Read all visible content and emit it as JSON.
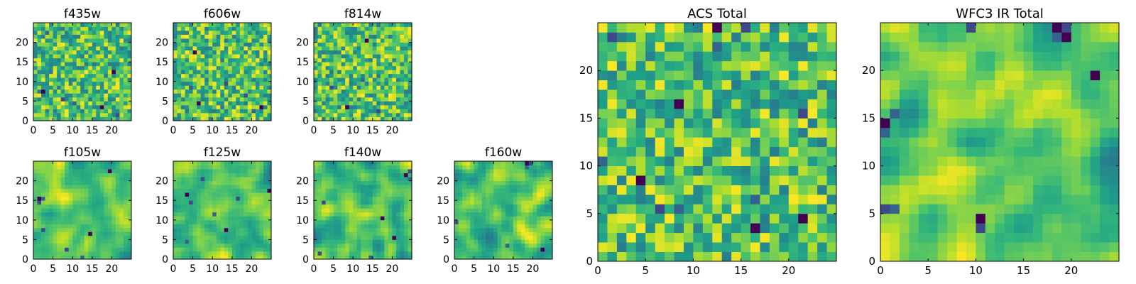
{
  "figure": {
    "background": "#ffffff",
    "colormap": "viridis",
    "colormap_stops": [
      "#440154",
      "#482878",
      "#3e4a89",
      "#31688e",
      "#26828e",
      "#1f9e89",
      "#35b779",
      "#6dcd59",
      "#b4de2c",
      "#fde725"
    ]
  },
  "chart_data": [
    {
      "type": "heatmap",
      "title": "f435w",
      "grid": false,
      "xlim": [
        0,
        25
      ],
      "ylim": [
        0,
        25
      ],
      "xticks": [
        "0",
        "5",
        "10",
        "15",
        "20"
      ],
      "yticks": [
        "0",
        "5",
        "10",
        "15",
        "20"
      ],
      "value_range": [
        0,
        1
      ],
      "pixels_per_side": 25,
      "texture": "fine",
      "seed": 11,
      "dark_cells": [
        [
          7,
          2
        ],
        [
          5,
          7
        ],
        [
          4,
          10
        ],
        [
          3,
          17
        ],
        [
          1,
          21
        ],
        [
          22,
          3
        ],
        [
          12,
          20
        ]
      ]
    },
    {
      "type": "heatmap",
      "title": "f606w",
      "grid": false,
      "xlim": [
        0,
        25
      ],
      "ylim": [
        0,
        25
      ],
      "xticks": [
        "0",
        "5",
        "10",
        "15",
        "20"
      ],
      "yticks": [
        "0",
        "5",
        "10",
        "15",
        "20"
      ],
      "value_range": [
        0,
        1
      ],
      "pixels_per_side": 25,
      "texture": "fine",
      "seed": 23,
      "dark_cells": [
        [
          17,
          5
        ],
        [
          9,
          13
        ],
        [
          8,
          4
        ],
        [
          4,
          6
        ],
        [
          6,
          18
        ],
        [
          2,
          20
        ],
        [
          3,
          22
        ]
      ]
    },
    {
      "type": "heatmap",
      "title": "f814w",
      "grid": false,
      "xlim": [
        0,
        25
      ],
      "ylim": [
        0,
        25
      ],
      "xticks": [
        "0",
        "5",
        "10",
        "15",
        "20"
      ],
      "yticks": [
        "0",
        "5",
        "10",
        "15",
        "20"
      ],
      "value_range": [
        0,
        1
      ],
      "pixels_per_side": 25,
      "texture": "fine",
      "seed": 37,
      "dark_cells": [
        [
          20,
          13
        ],
        [
          8,
          4
        ],
        [
          10,
          12
        ],
        [
          3,
          8
        ],
        [
          2,
          16
        ]
      ]
    },
    {
      "type": "heatmap",
      "title": "f105w",
      "grid": false,
      "xlim": [
        0,
        25
      ],
      "ylim": [
        0,
        25
      ],
      "xticks": [
        "0",
        "5",
        "10",
        "15",
        "20"
      ],
      "yticks": [
        "0",
        "5",
        "10",
        "15",
        "20"
      ],
      "value_range": [
        0,
        1
      ],
      "pixels_per_side": 25,
      "texture": "smooth",
      "seed": 41,
      "dark_cells": [
        [
          15,
          1
        ],
        [
          14,
          1
        ],
        [
          15,
          2
        ],
        [
          6,
          14
        ],
        [
          2,
          8
        ],
        [
          0,
          12
        ],
        [
          22,
          19
        ],
        [
          7,
          2
        ]
      ]
    },
    {
      "type": "heatmap",
      "title": "f125w",
      "grid": false,
      "xlim": [
        0,
        25
      ],
      "ylim": [
        0,
        25
      ],
      "xticks": [
        "0",
        "5",
        "10",
        "15",
        "20"
      ],
      "yticks": [
        "0",
        "5",
        "10",
        "15",
        "20"
      ],
      "value_range": [
        0,
        1
      ],
      "pixels_per_side": 25,
      "texture": "smooth",
      "seed": 53,
      "dark_cells": [
        [
          16,
          3
        ],
        [
          14,
          4
        ],
        [
          11,
          10
        ],
        [
          17,
          24
        ],
        [
          15,
          16
        ],
        [
          4,
          3
        ],
        [
          7,
          13
        ],
        [
          20,
          7
        ]
      ]
    },
    {
      "type": "heatmap",
      "title": "f140w",
      "grid": false,
      "xlim": [
        0,
        25
      ],
      "ylim": [
        0,
        25
      ],
      "xticks": [
        "0",
        "5",
        "10",
        "15",
        "20"
      ],
      "yticks": [
        "0",
        "5",
        "10",
        "15",
        "20"
      ],
      "value_range": [
        0,
        1
      ],
      "pixels_per_side": 25,
      "texture": "smooth",
      "seed": 67,
      "dark_cells": [
        [
          21,
          23
        ],
        [
          22,
          24
        ],
        [
          20,
          24
        ],
        [
          10,
          17
        ],
        [
          1,
          1
        ],
        [
          0,
          14
        ],
        [
          5,
          20
        ],
        [
          14,
          2
        ]
      ]
    },
    {
      "type": "heatmap",
      "title": "f160w",
      "grid": false,
      "xlim": [
        0,
        25
      ],
      "ylim": [
        0,
        25
      ],
      "xticks": [
        "0",
        "5",
        "10",
        "15",
        "20"
      ],
      "yticks": [
        "0",
        "5",
        "10",
        "15",
        "20"
      ],
      "value_range": [
        0,
        1
      ],
      "pixels_per_side": 25,
      "texture": "smooth",
      "seed": 79,
      "dark_cells": [
        [
          24,
          18
        ],
        [
          24,
          19
        ],
        [
          23,
          18
        ],
        [
          2,
          22
        ],
        [
          9,
          0
        ],
        [
          3,
          13
        ]
      ]
    },
    {
      "type": "heatmap",
      "title": "ACS Total",
      "grid": false,
      "xlim": [
        0,
        25
      ],
      "ylim": [
        0,
        25
      ],
      "xticks": [
        "0",
        "5",
        "10",
        "15",
        "20"
      ],
      "yticks": [
        "0",
        "5",
        "10",
        "15",
        "20"
      ],
      "value_range": [
        0,
        1
      ],
      "pixels_per_side": 25,
      "texture": "fine",
      "seed": 97,
      "dark_cells": [
        [
          24,
          12
        ],
        [
          24,
          15
        ],
        [
          22,
          12
        ],
        [
          16,
          8
        ],
        [
          15,
          21
        ],
        [
          10,
          0
        ],
        [
          8,
          4
        ],
        [
          5,
          6
        ],
        [
          5,
          8
        ],
        [
          3,
          16
        ],
        [
          23,
          1
        ],
        [
          6,
          16
        ],
        [
          4,
          21
        ]
      ]
    },
    {
      "type": "heatmap",
      "title": "WFC3 IR Total",
      "grid": false,
      "xlim": [
        0,
        25
      ],
      "ylim": [
        0,
        25
      ],
      "xticks": [
        "0",
        "5",
        "10",
        "15",
        "20"
      ],
      "yticks": [
        "0",
        "5",
        "10",
        "15",
        "20"
      ],
      "value_range": [
        0,
        1
      ],
      "pixels_per_side": 25,
      "texture": "smooth",
      "seed": 113,
      "dark_cells": [
        [
          24,
          18
        ],
        [
          24,
          19
        ],
        [
          23,
          18
        ],
        [
          23,
          19
        ],
        [
          24,
          9
        ],
        [
          13,
          0
        ],
        [
          14,
          0
        ],
        [
          5,
          0
        ],
        [
          5,
          1
        ],
        [
          4,
          10
        ],
        [
          3,
          10
        ],
        [
          15,
          1
        ],
        [
          19,
          22
        ]
      ]
    }
  ]
}
